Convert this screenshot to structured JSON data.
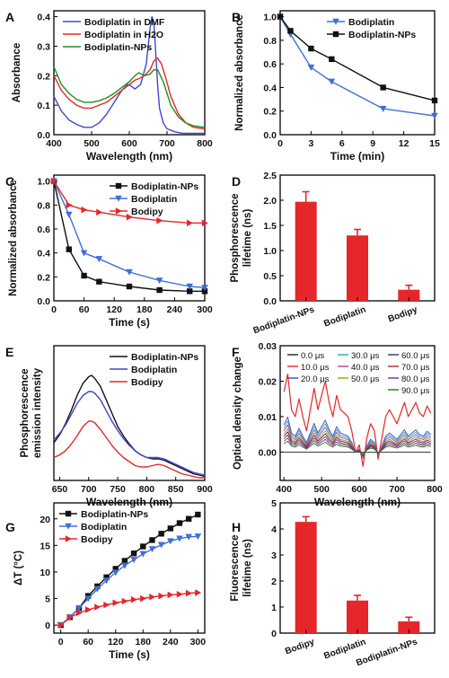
{
  "chart_data": [
    {
      "panel": "A",
      "type": "line",
      "xlabel": "Wavelength (nm)",
      "ylabel": "Absorbance",
      "xlim": [
        400,
        800
      ],
      "ylim": [
        0,
        0.42
      ],
      "xticks": [
        "400",
        "500",
        "600",
        "700",
        "800"
      ],
      "xtick_values": [
        400,
        500,
        600,
        700,
        800
      ],
      "yticks": [
        "0.0",
        "0.1",
        "0.2",
        "0.3",
        "0.4"
      ],
      "ytick_values": [
        0,
        0.1,
        0.2,
        0.3,
        0.4
      ],
      "legend_position": "top-right",
      "series": [
        {
          "name": "Bodiplatin in DMF",
          "color": "#3f48cc",
          "x": [
            400,
            420,
            440,
            460,
            480,
            500,
            520,
            540,
            560,
            580,
            595,
            605,
            615,
            630,
            645,
            655,
            660,
            665,
            670,
            675,
            680,
            690,
            700,
            720,
            740,
            760,
            780,
            800
          ],
          "y": [
            0.13,
            0.08,
            0.05,
            0.035,
            0.025,
            0.025,
            0.04,
            0.07,
            0.11,
            0.15,
            0.17,
            0.165,
            0.155,
            0.17,
            0.24,
            0.36,
            0.4,
            0.38,
            0.28,
            0.17,
            0.09,
            0.04,
            0.02,
            0.01,
            0.005,
            0.005,
            0.005,
            0.005
          ]
        },
        {
          "name": "Bodiplatin in H2O",
          "color": "#e5262b",
          "x": [
            400,
            420,
            440,
            460,
            480,
            500,
            520,
            540,
            560,
            580,
            600,
            615,
            625,
            640,
            655,
            665,
            675,
            685,
            695,
            710,
            730,
            750,
            770,
            800
          ],
          "y": [
            0.2,
            0.15,
            0.12,
            0.1,
            0.09,
            0.09,
            0.1,
            0.11,
            0.13,
            0.15,
            0.17,
            0.185,
            0.19,
            0.2,
            0.22,
            0.25,
            0.26,
            0.24,
            0.2,
            0.13,
            0.07,
            0.04,
            0.025,
            0.02
          ]
        },
        {
          "name": "Bodiplatin-NPs",
          "color": "#1e8f1e",
          "x": [
            400,
            420,
            440,
            460,
            480,
            500,
            520,
            540,
            560,
            580,
            600,
            615,
            625,
            640,
            655,
            665,
            675,
            690,
            710,
            730,
            750,
            770,
            800
          ],
          "y": [
            0.23,
            0.17,
            0.14,
            0.12,
            0.11,
            0.11,
            0.115,
            0.125,
            0.14,
            0.16,
            0.18,
            0.2,
            0.21,
            0.2,
            0.205,
            0.22,
            0.22,
            0.18,
            0.1,
            0.06,
            0.04,
            0.03,
            0.025
          ]
        }
      ]
    },
    {
      "panel": "B",
      "type": "line",
      "xlabel": "Time (min)",
      "ylabel": "Normalized absorbance",
      "xlim": [
        0,
        15
      ],
      "ylim": [
        0,
        1.05
      ],
      "xticks": [
        "0",
        "3",
        "6",
        "9",
        "12",
        "15"
      ],
      "xtick_values": [
        0,
        3,
        6,
        9,
        12,
        15
      ],
      "yticks": [
        "0.0",
        "0.2",
        "0.4",
        "0.6",
        "0.8",
        "1.0"
      ],
      "ytick_values": [
        0,
        0.2,
        0.4,
        0.6,
        0.8,
        1.0
      ],
      "legend_position": "top-right",
      "series": [
        {
          "name": "Bodiplatin",
          "color": "#3f6fd6",
          "marker": "tri-down",
          "x": [
            0,
            1,
            3,
            5,
            10,
            15
          ],
          "y": [
            1.0,
            0.85,
            0.57,
            0.45,
            0.22,
            0.16
          ]
        },
        {
          "name": "Bodiplatin-NPs",
          "color": "#111111",
          "marker": "square",
          "x": [
            0,
            1,
            3,
            5,
            10,
            15
          ],
          "y": [
            1.0,
            0.88,
            0.73,
            0.64,
            0.4,
            0.29
          ]
        }
      ]
    },
    {
      "panel": "C",
      "type": "line",
      "xlabel": "Time (s)",
      "ylabel": "Normalized absorbance",
      "xlim": [
        0,
        300
      ],
      "ylim": [
        0,
        1.05
      ],
      "xticks": [
        "0",
        "60",
        "120",
        "180",
        "240",
        "300"
      ],
      "xtick_values": [
        0,
        60,
        120,
        180,
        240,
        300
      ],
      "yticks": [
        "0.0",
        "0.2",
        "0.4",
        "0.6",
        "0.8",
        "1.0"
      ],
      "ytick_values": [
        0,
        0.2,
        0.4,
        0.6,
        0.8,
        1.0
      ],
      "legend_position": "top-right",
      "series": [
        {
          "name": "Bodiplatin-NPs",
          "color": "#111111",
          "marker": "square",
          "x": [
            0,
            30,
            60,
            90,
            150,
            210,
            270,
            300
          ],
          "y": [
            1.0,
            0.43,
            0.21,
            0.16,
            0.12,
            0.09,
            0.08,
            0.08
          ]
        },
        {
          "name": "Bodiplatin",
          "color": "#3f6fd6",
          "marker": "tri-down",
          "x": [
            0,
            30,
            60,
            90,
            150,
            210,
            270,
            300
          ],
          "y": [
            1.0,
            0.72,
            0.4,
            0.35,
            0.24,
            0.17,
            0.12,
            0.11
          ]
        },
        {
          "name": "Bodipy",
          "color": "#e5262b",
          "marker": "tri-right",
          "x": [
            0,
            30,
            60,
            90,
            150,
            210,
            270,
            300
          ],
          "y": [
            1.0,
            0.8,
            0.76,
            0.74,
            0.7,
            0.67,
            0.65,
            0.65
          ]
        }
      ]
    },
    {
      "panel": "D",
      "type": "bar",
      "ylabel": "Phosphorescence lifetime (ns)",
      "ylim": [
        0,
        2.5
      ],
      "yticks": [
        "0.0",
        "0.5",
        "1.0",
        "1.5",
        "2.0",
        "2.5"
      ],
      "ytick_values": [
        0,
        0.5,
        1.0,
        1.5,
        2.0,
        2.5
      ],
      "categories": [
        "Bodiplatin-NPs",
        "Bodiplatin",
        "Bodipy"
      ],
      "values": [
        1.97,
        1.3,
        0.22
      ],
      "errors": [
        0.2,
        0.12,
        0.09
      ],
      "color": "#e5262b"
    },
    {
      "panel": "E",
      "type": "line",
      "xlabel": "Wavelength (nm)",
      "ylabel": "Phosphorescence emission intensity",
      "xlim": [
        640,
        900
      ],
      "ylim": [
        0,
        100
      ],
      "xticks": [
        "650",
        "700",
        "750",
        "800",
        "850",
        "900"
      ],
      "xtick_values": [
        650,
        700,
        750,
        800,
        850,
        900
      ],
      "legend_position": "top-right",
      "series": [
        {
          "name": "Bodiplatin-NPs",
          "color": "#111111",
          "x": [
            640,
            650,
            660,
            670,
            680,
            690,
            700,
            705,
            710,
            720,
            730,
            740,
            750,
            760,
            770,
            780,
            790,
            800,
            810,
            820,
            830,
            840,
            850,
            860,
            870,
            880,
            890,
            900
          ],
          "y": [
            28,
            34,
            42,
            52,
            63,
            72,
            77,
            78,
            76,
            70,
            60,
            50,
            40,
            33,
            27,
            22,
            19,
            17,
            16,
            16,
            15,
            13,
            11,
            9,
            7,
            5,
            4,
            3
          ]
        },
        {
          "name": "Bodiplatin",
          "color": "#3f48cc",
          "x": [
            640,
            650,
            660,
            670,
            680,
            690,
            700,
            705,
            710,
            720,
            730,
            740,
            750,
            760,
            770,
            780,
            790,
            800,
            810,
            820,
            830,
            840,
            850,
            860,
            870,
            880,
            890,
            900
          ],
          "y": [
            30,
            35,
            41,
            49,
            57,
            63,
            66,
            66,
            65,
            60,
            52,
            44,
            37,
            31,
            26,
            22,
            19,
            17,
            17,
            17,
            16,
            14,
            12,
            10,
            8,
            6,
            5,
            4
          ]
        },
        {
          "name": "Bodipy",
          "color": "#e5262b",
          "x": [
            640,
            650,
            660,
            670,
            680,
            690,
            700,
            705,
            710,
            720,
            730,
            740,
            750,
            760,
            770,
            780,
            790,
            800,
            810,
            820,
            830,
            840,
            850,
            860,
            870,
            880,
            890,
            900
          ],
          "y": [
            17,
            19,
            22,
            27,
            33,
            40,
            44,
            44,
            43,
            38,
            32,
            26,
            21,
            17,
            14,
            11,
            10,
            10,
            11,
            12,
            11,
            9,
            7,
            5,
            4,
            3,
            2,
            2
          ]
        }
      ]
    },
    {
      "panel": "F",
      "type": "line",
      "xlabel": "Wavelength (nm)",
      "ylabel": "Optical density change",
      "xlim": [
        390,
        800
      ],
      "ylim": [
        -0.008,
        0.03
      ],
      "xticks": [
        "400",
        "500",
        "600",
        "700",
        "800"
      ],
      "xtick_values": [
        400,
        500,
        600,
        700,
        800
      ],
      "yticks": [
        "0.00",
        "0.01",
        "0.02",
        "0.03"
      ],
      "ytick_values": [
        0,
        0.01,
        0.02,
        0.03
      ],
      "legend_position": "top",
      "series": [
        {
          "name": "0.0 μs",
          "color": "#222222",
          "amp": 0.0
        },
        {
          "name": "10.0 μs",
          "color": "#e5262b",
          "amp": 1.0
        },
        {
          "name": "20.0 μs",
          "color": "#3f48cc",
          "amp": 0.45
        },
        {
          "name": "30.0 μs",
          "color": "#1bb3a8",
          "amp": 0.4
        },
        {
          "name": "40.0 μs",
          "color": "#c03a9e",
          "amp": 0.35
        },
        {
          "name": "50.0 μs",
          "color": "#9a9a20",
          "amp": 0.3
        },
        {
          "name": "60.0 μs",
          "color": "#333366",
          "amp": 0.26
        },
        {
          "name": "70.0 μs",
          "color": "#a8282a",
          "amp": 0.22
        },
        {
          "name": "80.0 μs",
          "color": "#6a2ea0",
          "amp": 0.18
        },
        {
          "name": "90.0 μs",
          "color": "#1c7a1c",
          "amp": 0.14
        }
      ],
      "base_profile": {
        "x": [
          400,
          410,
          420,
          430,
          440,
          450,
          460,
          470,
          480,
          490,
          500,
          510,
          520,
          530,
          540,
          550,
          560,
          570,
          580,
          590,
          600,
          610,
          620,
          630,
          640,
          650,
          660,
          670,
          680,
          690,
          700,
          710,
          720,
          730,
          740,
          750,
          760,
          770,
          780,
          790
        ],
        "y": [
          0.017,
          0.022,
          0.012,
          0.01,
          0.015,
          0.01,
          0.006,
          0.012,
          0.018,
          0.012,
          0.016,
          0.02,
          0.014,
          0.01,
          0.016,
          0.012,
          0.011,
          0.01,
          0.006,
          0.0,
          0.002,
          -0.004,
          0.004,
          0.008,
          0.006,
          -0.002,
          0.004,
          0.01,
          0.012,
          0.01,
          0.008,
          0.011,
          0.014,
          0.01,
          0.012,
          0.014,
          0.011,
          0.01,
          0.013,
          0.011
        ]
      }
    },
    {
      "panel": "G",
      "type": "line",
      "xlabel": "Time (s)",
      "ylabel": "ΔT (°C)",
      "xlim": [
        -15,
        315
      ],
      "ylim": [
        -1.5,
        23
      ],
      "xticks": [
        "0",
        "60",
        "120",
        "180",
        "240",
        "300"
      ],
      "xtick_values": [
        0,
        60,
        120,
        180,
        240,
        300
      ],
      "yticks": [
        "0",
        "5",
        "10",
        "15",
        "20"
      ],
      "ytick_values": [
        0,
        5,
        10,
        15,
        20
      ],
      "legend_position": "top-left",
      "series": [
        {
          "name": "Bodiplatin-NPs",
          "color": "#111111",
          "marker": "square",
          "x": [
            0,
            20,
            40,
            60,
            80,
            100,
            120,
            140,
            160,
            180,
            200,
            220,
            240,
            260,
            280,
            300
          ],
          "y": [
            0,
            1.5,
            3.2,
            5.5,
            7.3,
            9.0,
            10.6,
            12.1,
            13.5,
            14.8,
            16.0,
            17.2,
            18.2,
            19.2,
            20.0,
            20.8
          ]
        },
        {
          "name": "Bodiplatin",
          "color": "#3f6fd6",
          "marker": "tri-down",
          "x": [
            0,
            20,
            40,
            60,
            80,
            100,
            120,
            140,
            160,
            180,
            200,
            220,
            240,
            260,
            280,
            300
          ],
          "y": [
            0,
            1.5,
            3.2,
            5.0,
            6.8,
            8.4,
            9.9,
            11.2,
            12.3,
            13.4,
            14.3,
            15.1,
            15.8,
            16.3,
            16.6,
            16.7
          ]
        },
        {
          "name": "Bodipy",
          "color": "#e5262b",
          "marker": "tri-right",
          "x": [
            0,
            20,
            40,
            60,
            80,
            100,
            120,
            140,
            160,
            180,
            200,
            220,
            240,
            260,
            280,
            300
          ],
          "y": [
            0,
            1.4,
            2.3,
            2.9,
            3.4,
            3.8,
            4.2,
            4.5,
            4.8,
            5.0,
            5.3,
            5.5,
            5.7,
            5.8,
            6.0,
            6.1
          ]
        }
      ]
    },
    {
      "panel": "H",
      "type": "bar",
      "ylabel": "Fluorescence lifetime (ns)",
      "ylim": [
        0,
        5
      ],
      "yticks": [
        "0",
        "1",
        "2",
        "3",
        "4",
        "5"
      ],
      "ytick_values": [
        0,
        1,
        2,
        3,
        4,
        5
      ],
      "categories": [
        "Bodipy",
        "Bodiplatin",
        "Bodiplatin-NPs"
      ],
      "values": [
        4.27,
        1.25,
        0.45
      ],
      "errors": [
        0.2,
        0.2,
        0.16
      ],
      "color": "#e5262b"
    }
  ]
}
